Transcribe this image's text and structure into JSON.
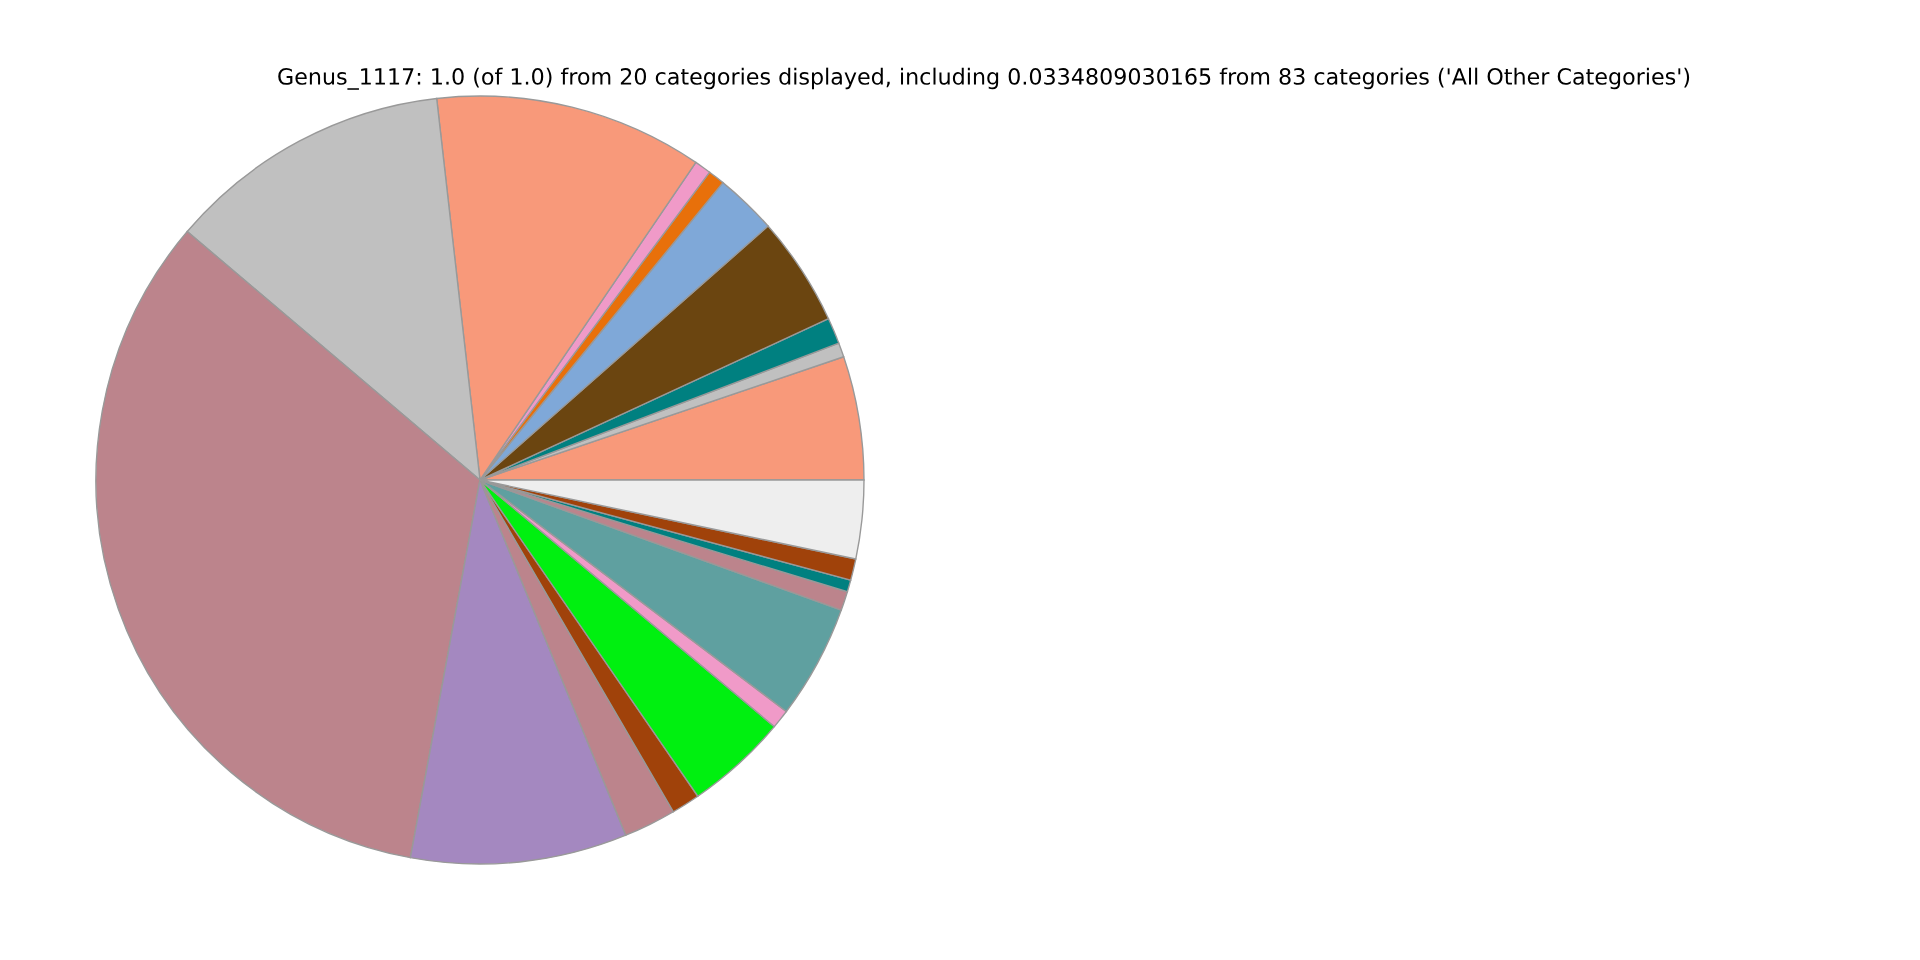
{
  "chart_data": {
    "type": "pie",
    "title": "Genus_1117: 1.0 (of 1.0) from 20 categories displayed, including 0.0334809030165 from 83 categories ('All Other Categories')",
    "categories": [
      null,
      null,
      null,
      null,
      null,
      null,
      null,
      null,
      null,
      null,
      null,
      null,
      null,
      null,
      null,
      null,
      null,
      null,
      null,
      null
    ],
    "values": [
      5.2,
      0.6,
      1.1,
      4.6,
      2.6,
      0.7,
      0.7,
      11.3,
      12.0,
      33.3,
      9.1,
      2.2,
      1.2,
      4.3,
      0.8,
      4.8,
      0.8,
      0.5,
      0.9,
      3.3
    ],
    "colors": [
      "#f8997a",
      "#c0c0c0",
      "#008080",
      "#6b4510",
      "#7fa8d8",
      "#e8700a",
      "#f09ac8",
      "#f8997a",
      "#c0c0c0",
      "#bc848c",
      "#a488c0",
      "#bc848c",
      "#a0420a",
      "#00f010",
      "#f09ac8",
      "#5fa0a0",
      "#bc848c",
      "#008080",
      "#a0420a",
      "#eeeeee"
    ]
  }
}
